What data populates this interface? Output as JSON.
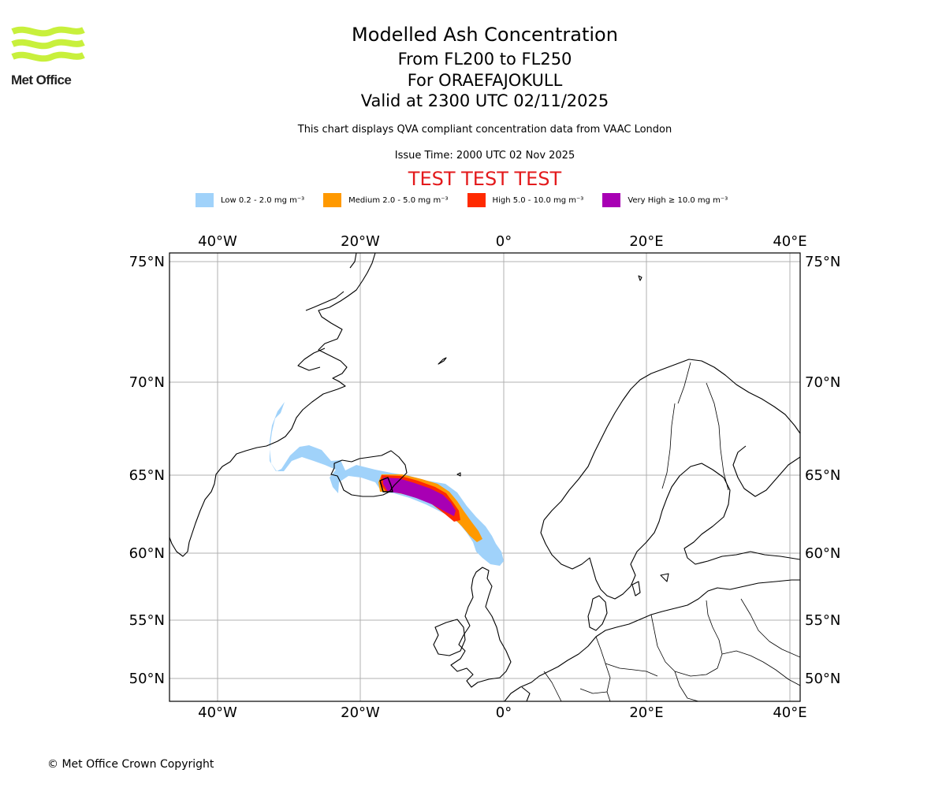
{
  "logo": {
    "text": "Met Office"
  },
  "header": {
    "title": "Modelled Ash Concentration",
    "levels": "From FL200 to FL250",
    "volcano": "For ORAEFAJOKULL",
    "valid": "Valid at 2300 UTC 02/11/2025",
    "note": "This chart displays QVA compliant concentration data from VAAC London",
    "issue": "Issue Time: 2000 UTC 02 Nov 2025",
    "test_banner": "TEST TEST TEST"
  },
  "legend": [
    {
      "label": "Low 0.2 - 2.0 mg m⁻³",
      "color": "#a0d2fa"
    },
    {
      "label": "Medium 2.0 - 5.0 mg m⁻³",
      "color": "#ff9900"
    },
    {
      "label": "High 5.0 - 10.0 mg m⁻³",
      "color": "#ff2a00"
    },
    {
      "label": "Very High ≥ 10.0 mg m⁻³",
      "color": "#a800b4"
    }
  ],
  "map": {
    "lon_ticks": [
      "40°W",
      "20°W",
      "0°",
      "20°E",
      "40°E"
    ],
    "lat_ticks": [
      "75°N",
      "70°N",
      "65°N",
      "60°N",
      "55°N",
      "50°N"
    ],
    "ash_colors": {
      "low": "#a0d2fa",
      "medium": "#ff9900",
      "high": "#ff2a00",
      "very_high": "#a800b4"
    }
  },
  "footer": {
    "copyright": "© Met Office Crown Copyright"
  }
}
